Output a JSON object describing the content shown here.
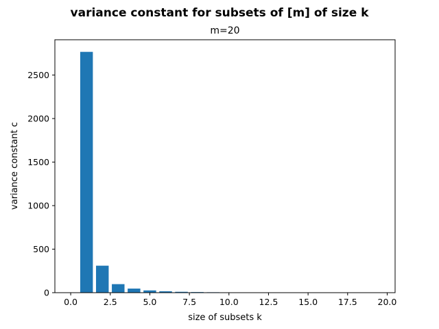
{
  "chart_data": {
    "type": "bar",
    "suptitle": "variance constant for subsets of [m] of size k",
    "title": "m=20",
    "xlabel": "size of subsets k",
    "ylabel": "variance constant c",
    "x": [
      1,
      2,
      3,
      4,
      5,
      6,
      7,
      8,
      9,
      10,
      11,
      12,
      13,
      14,
      15,
      16,
      17,
      18,
      19
    ],
    "values": [
      2766,
      310,
      98,
      47,
      26,
      16,
      10,
      7,
      5,
      3,
      2,
      1.5,
      1,
      1,
      0.5,
      0.5,
      0.3,
      0.2,
      0.1
    ],
    "xlim": [
      -1,
      20.5
    ],
    "ylim": [
      0,
      2905
    ],
    "xticks": [
      0,
      2.5,
      5,
      7.5,
      10,
      12.5,
      15,
      17.5,
      20
    ],
    "xtick_labels": [
      "0.0",
      "2.5",
      "5.0",
      "7.5",
      "10.0",
      "12.5",
      "15.0",
      "17.5",
      "20.0"
    ],
    "yticks": [
      0,
      500,
      1000,
      1500,
      2000,
      2500
    ],
    "ytick_labels": [
      "0",
      "500",
      "1000",
      "1500",
      "2000",
      "2500"
    ],
    "bar_color": "#1f77b4",
    "grid": false,
    "legend": null
  }
}
